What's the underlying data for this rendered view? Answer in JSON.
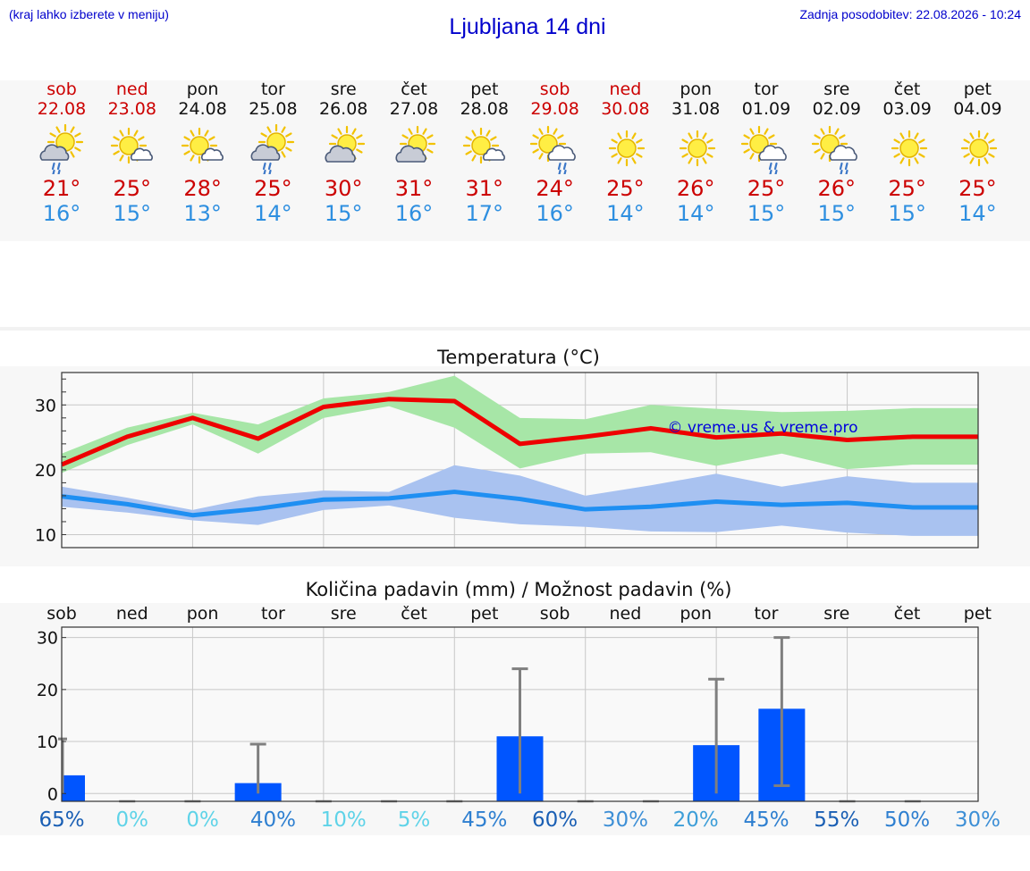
{
  "header": {
    "left_note": "(kraj lahko izberete v meniju)",
    "title": "Ljubljana 14 dni",
    "updated": "Zadnja posodobitev: 22.08.2026 - 10:24"
  },
  "colors": {
    "max_temp": "#ee0000",
    "min_temp": "#1f8ff2",
    "max_band": "#a7e6a7",
    "min_band": "#a9c2f0",
    "precip_bar": "#0055ff",
    "error_bar": "#7f7f7f",
    "weekend_label": "#cc0000"
  },
  "days": [
    {
      "name": "sob",
      "date": "22.08",
      "weekend": true,
      "icon": "sun-cloud-rain",
      "tmax": "21°",
      "tmin": "16°"
    },
    {
      "name": "ned",
      "date": "23.08",
      "weekend": true,
      "icon": "sun-small-cloud",
      "tmax": "25°",
      "tmin": "15°"
    },
    {
      "name": "pon",
      "date": "24.08",
      "weekend": false,
      "icon": "sun-small-cloud",
      "tmax": "28°",
      "tmin": "13°"
    },
    {
      "name": "tor",
      "date": "25.08",
      "weekend": false,
      "icon": "sun-cloud-rain",
      "tmax": "25°",
      "tmin": "14°"
    },
    {
      "name": "sre",
      "date": "26.08",
      "weekend": false,
      "icon": "sun-cloud",
      "tmax": "30°",
      "tmin": "15°"
    },
    {
      "name": "čet",
      "date": "27.08",
      "weekend": false,
      "icon": "sun-cloud",
      "tmax": "31°",
      "tmin": "16°"
    },
    {
      "name": "pet",
      "date": "28.08",
      "weekend": false,
      "icon": "sun-small-cloud",
      "tmax": "31°",
      "tmin": "17°"
    },
    {
      "name": "sob",
      "date": "29.08",
      "weekend": true,
      "icon": "sun-cloud-rain-right",
      "tmax": "24°",
      "tmin": "16°"
    },
    {
      "name": "ned",
      "date": "30.08",
      "weekend": true,
      "icon": "sun",
      "tmax": "25°",
      "tmin": "14°"
    },
    {
      "name": "pon",
      "date": "31.08",
      "weekend": false,
      "icon": "sun",
      "tmax": "26°",
      "tmin": "14°"
    },
    {
      "name": "tor",
      "date": "01.09",
      "weekend": false,
      "icon": "sun-cloud-rain-right",
      "tmax": "25°",
      "tmin": "15°"
    },
    {
      "name": "sre",
      "date": "02.09",
      "weekend": false,
      "icon": "sun-cloud-rain-right",
      "tmax": "26°",
      "tmin": "15°"
    },
    {
      "name": "čet",
      "date": "03.09",
      "weekend": false,
      "icon": "sun",
      "tmax": "25°",
      "tmin": "15°"
    },
    {
      "name": "pet",
      "date": "04.09",
      "weekend": false,
      "icon": "sun",
      "tmax": "25°",
      "tmin": "14°"
    }
  ],
  "temperature_chart": {
    "title": "Temperatura (°C)",
    "watermark": "© vreme.us & vreme.pro"
  },
  "precip_chart": {
    "title": "Količina padavin (mm) / Možnost padavin (%)",
    "probabilities": [
      "65%",
      "0%",
      "0%",
      "40%",
      "10%",
      "5%",
      "45%",
      "60%",
      "30%",
      "20%",
      "45%",
      "55%",
      "50%",
      "30%"
    ],
    "prob_colors": [
      "#1a5fb4",
      "#5fd3e8",
      "#5fd3e8",
      "#2e7fd0",
      "#5fd3e8",
      "#5fd3e8",
      "#2e7fd0",
      "#1a5fb4",
      "#3d8fd6",
      "#3d9ed8",
      "#2e7fd0",
      "#1a5fb4",
      "#2e7fd0",
      "#3d8fd6"
    ]
  },
  "chart_data": [
    {
      "type": "line",
      "title": "Temperatura (°C)",
      "ylabel": "",
      "xlabel": "",
      "ylim": [
        8,
        35
      ],
      "yticks": [
        10,
        20,
        30
      ],
      "x": [
        "22.08",
        "23.08",
        "24.08",
        "25.08",
        "26.08",
        "27.08",
        "28.08",
        "29.08",
        "30.08",
        "31.08",
        "01.09",
        "02.09",
        "03.09",
        "04.09"
      ],
      "x_end": "05.09",
      "grid": true,
      "annotation": "© vreme.us & vreme.pro",
      "series": [
        {
          "values": [
            20.8,
            25.1,
            28.0,
            24.8,
            29.7,
            30.9,
            30.6,
            24.0,
            25.1,
            26.4,
            25.0,
            25.6,
            24.6,
            25.1
          ]
        },
        {
          "values": [
            15.9,
            14.7,
            13.0,
            14.0,
            15.4,
            15.6,
            16.6,
            15.5,
            13.9,
            14.3,
            15.1,
            14.6,
            14.9,
            14.2
          ]
        }
      ],
      "bands": [
        {
          "lower": [
            19.5,
            23.8,
            27.0,
            22.5,
            28.0,
            29.8,
            26.5,
            20.2,
            22.5,
            22.7,
            20.6,
            22.5,
            20.1,
            20.8
          ],
          "upper": [
            22.5,
            26.5,
            28.8,
            27.0,
            31.0,
            32.0,
            34.5,
            28.0,
            27.8,
            30.0,
            29.4,
            28.9,
            29.1,
            29.5
          ]
        },
        {
          "lower": [
            14.3,
            13.4,
            12.2,
            11.5,
            13.8,
            14.5,
            12.6,
            11.6,
            11.2,
            10.5,
            10.4,
            11.4,
            10.3,
            9.8
          ],
          "upper": [
            17.4,
            15.7,
            13.8,
            15.9,
            16.8,
            16.6,
            20.7,
            19.1,
            16.0,
            17.6,
            19.4,
            17.4,
            19.0,
            18.0
          ]
        }
      ]
    },
    {
      "type": "bar",
      "title": "Količina padavin (mm) / Možnost padavin (%)",
      "ylabel": "",
      "xlabel": "",
      "ylim": [
        -1.5,
        32
      ],
      "yticks": [
        0,
        10,
        20,
        30
      ],
      "categories": [
        "sob",
        "ned",
        "pon",
        "tor",
        "sre",
        "čet",
        "pet",
        "sob",
        "ned",
        "pon",
        "tor",
        "sre",
        "čet",
        "pet"
      ],
      "grid": true,
      "values": [
        3.5,
        0,
        0,
        2.0,
        0,
        0,
        0,
        11.0,
        0,
        0,
        9.3,
        16.3,
        0,
        0
      ],
      "error_max": [
        10.5,
        0,
        0,
        9.5,
        0,
        0,
        0,
        24.0,
        0,
        0,
        22.0,
        30.0,
        0,
        0
      ],
      "error_min": [
        0,
        0,
        0,
        0,
        0,
        0,
        0,
        0,
        0,
        0,
        0,
        1.5,
        0,
        0
      ],
      "probability_pct": [
        65,
        0,
        0,
        40,
        10,
        5,
        45,
        60,
        30,
        20,
        45,
        55,
        50,
        30
      ]
    }
  ]
}
